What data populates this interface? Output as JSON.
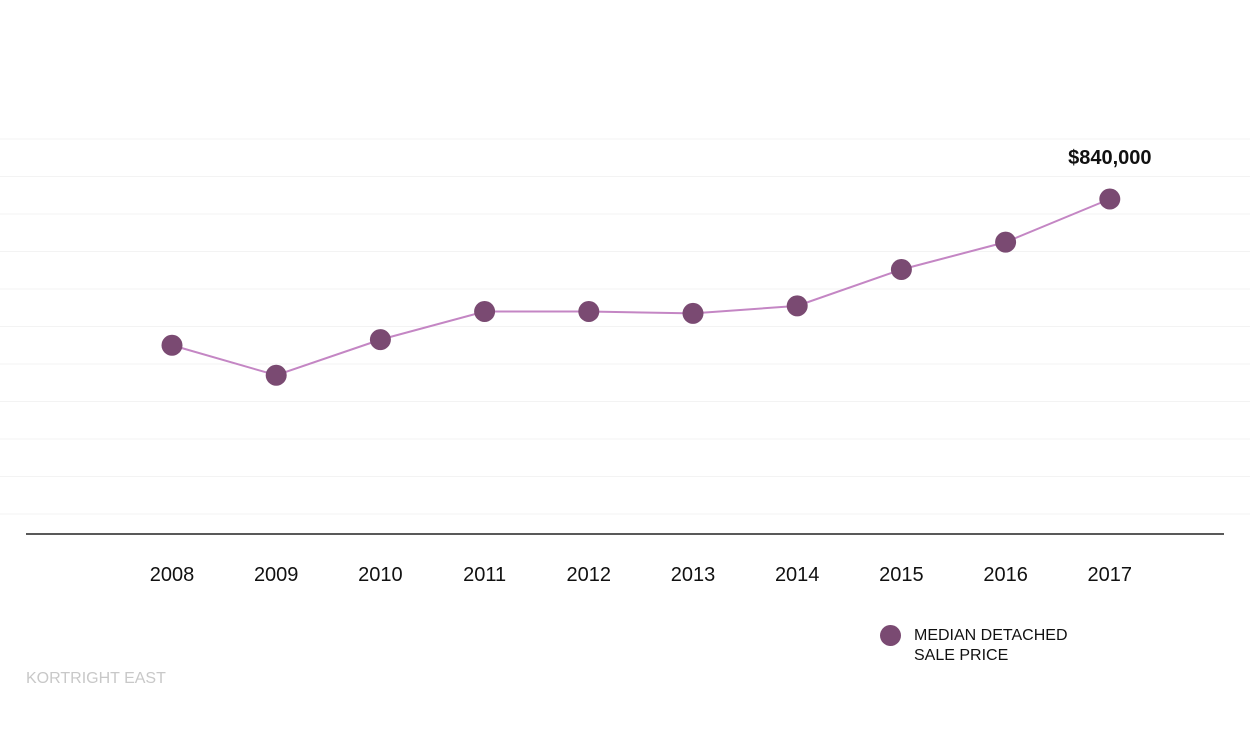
{
  "chart_data": {
    "type": "line",
    "title": "",
    "xlabel": "",
    "ylabel": "",
    "categories": [
      "2008",
      "2009",
      "2010",
      "2011",
      "2012",
      "2013",
      "2014",
      "2015",
      "2016",
      "2017"
    ],
    "series": [
      {
        "name": "MEDIAN DETACHED SALE PRICE",
        "values": [
          450000,
          370000,
          465000,
          540000,
          540000,
          535000,
          555000,
          652000,
          725000,
          840000
        ]
      }
    ],
    "ylim": [
      0,
      1200000
    ],
    "grid": true,
    "y_tick_labels_shown": false,
    "annotations": [
      {
        "category": "2017",
        "text": "$840,000"
      }
    ],
    "legend_position": "bottom-right"
  },
  "colors": {
    "marker": "#7a4a72",
    "line": "#c486c4",
    "axis": "#222222",
    "grid": "#f3f3f3",
    "source_text": "#c8c8c8"
  },
  "legend": {
    "label": "MEDIAN DETACHED\nSALE PRICE"
  },
  "source_label": "KORTRIGHT EAST"
}
